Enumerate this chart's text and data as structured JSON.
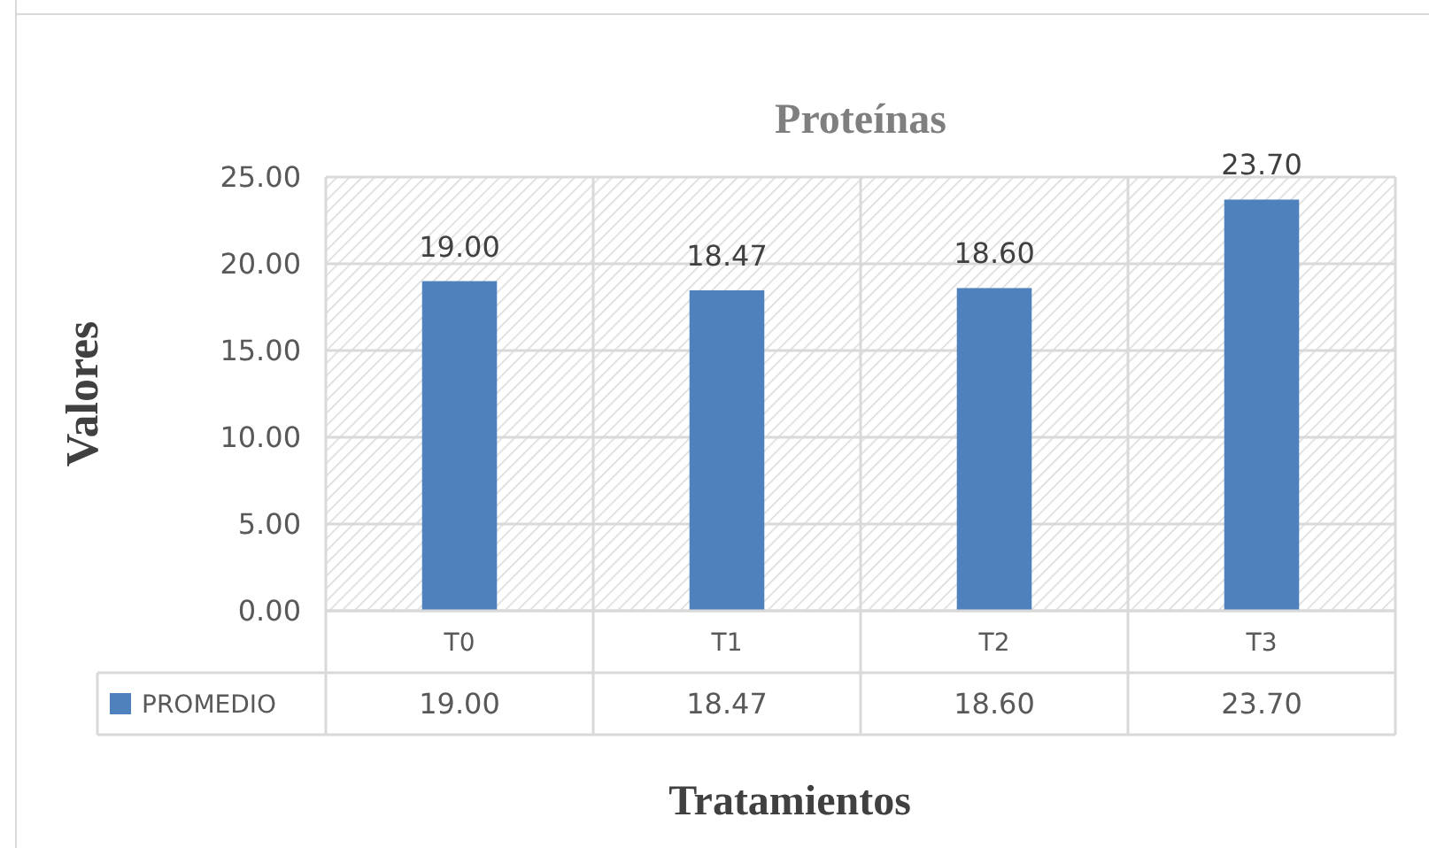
{
  "chart_data": {
    "type": "bar",
    "title": "Proteínas",
    "xlabel": "Tratamientos",
    "ylabel": "Valores",
    "categories": [
      "T0",
      "T1",
      "T2",
      "T3"
    ],
    "series": [
      {
        "name": "PROMEDIO",
        "color": "#4f81bd",
        "values": [
          19.0,
          18.47,
          18.6,
          23.7
        ],
        "value_labels": [
          "19.00",
          "18.47",
          "18.60",
          "23.70"
        ]
      }
    ],
    "ylim": [
      0,
      25
    ],
    "yticks": [
      {
        "value": 0,
        "label": "0.00"
      },
      {
        "value": 5,
        "label": "5.00"
      },
      {
        "value": 10,
        "label": "10.00"
      },
      {
        "value": 15,
        "label": "15.00"
      },
      {
        "value": 20,
        "label": "20.00"
      },
      {
        "value": 25,
        "label": "25.00"
      }
    ],
    "grid": true,
    "legend": "bottom"
  }
}
